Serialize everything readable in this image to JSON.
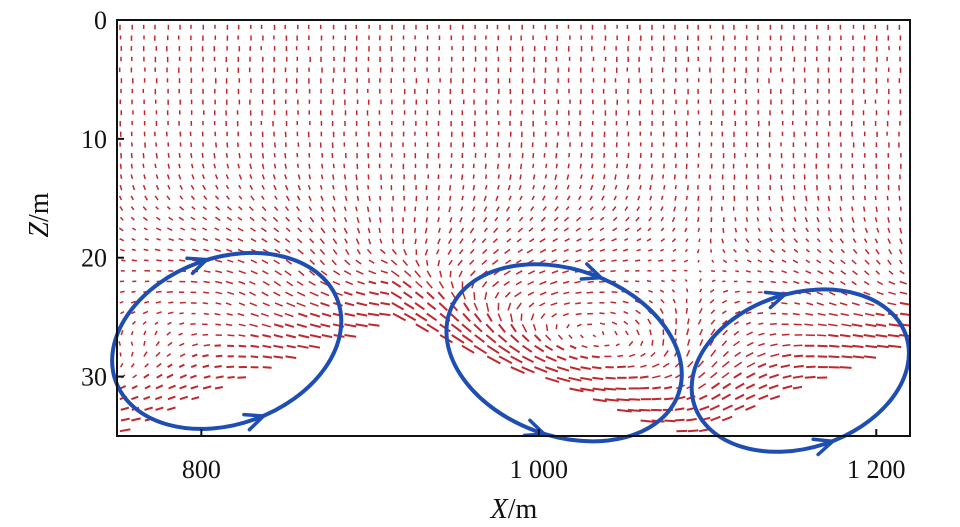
{
  "chart_data": {
    "type": "quiver",
    "title": "",
    "xlabel": {
      "symbol": "X",
      "unit": "/m"
    },
    "ylabel": {
      "symbol": "Z",
      "unit": "/m"
    },
    "xlim": [
      750,
      1220
    ],
    "ylim": [
      0,
      35
    ],
    "y_inverted": true,
    "xticks": [
      {
        "value": 800,
        "label": "800"
      },
      {
        "value": 1000,
        "label": "1 000"
      },
      {
        "value": 1200,
        "label": "1 200"
      }
    ],
    "yticks": [
      {
        "value": 0,
        "label": "0"
      },
      {
        "value": 10,
        "label": "10"
      },
      {
        "value": 20,
        "label": "20"
      },
      {
        "value": 30,
        "label": "30"
      }
    ],
    "grid": false,
    "vector_color": "#c0282e",
    "circulation_color": "#1f4eb3",
    "bed_profile": [
      {
        "x": 750,
        "z": 35
      },
      {
        "x": 910,
        "z": 25
      },
      {
        "x": 1080,
        "z": 35
      },
      {
        "x": 1095,
        "z": 35
      },
      {
        "x": 1220,
        "z": 27
      }
    ],
    "circulation_cells": [
      {
        "center_x": 815,
        "center_z": 27,
        "semi_axis_x": 70,
        "semi_axis_z": 7,
        "tilt_deg": -20,
        "direction": "clockwise"
      },
      {
        "center_x": 1015,
        "center_z": 28,
        "semi_axis_x": 72,
        "semi_axis_z": 7,
        "tilt_deg": 20,
        "direction": "counterclockwise"
      },
      {
        "center_x": 1155,
        "center_z": 29.5,
        "semi_axis_x": 66,
        "semi_axis_z": 6.5,
        "tilt_deg": -18,
        "direction": "clockwise"
      }
    ]
  }
}
